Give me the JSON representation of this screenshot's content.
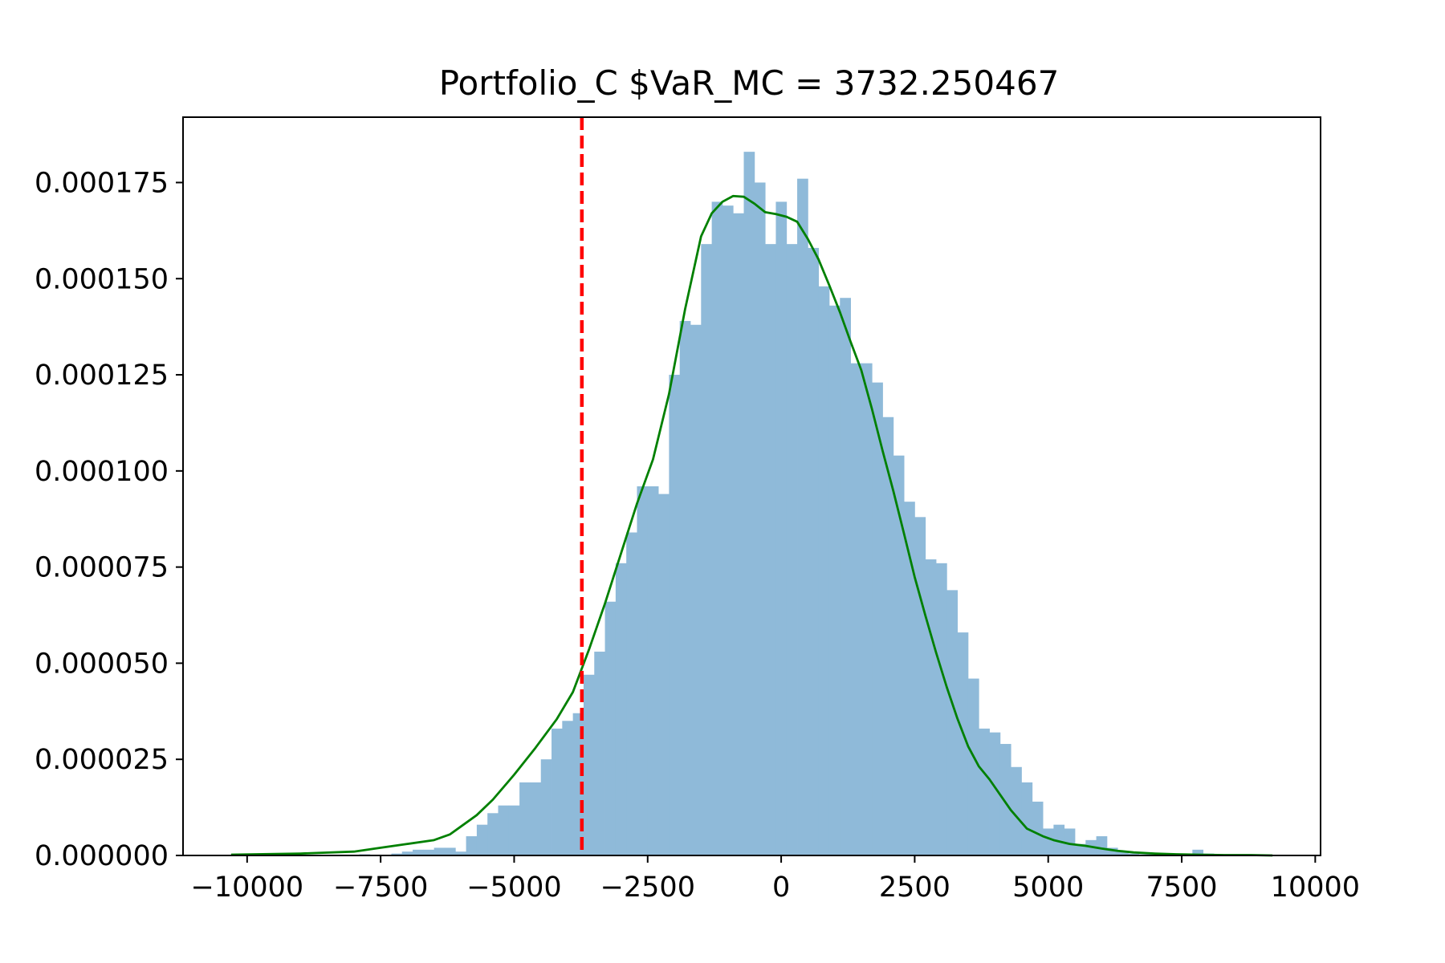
{
  "chart_data": {
    "type": "bar",
    "title": "Portfolio_C $VaR_MC = 3732.250467",
    "xlabel": "",
    "ylabel": "",
    "xlim": [
      -11200,
      10100
    ],
    "ylim": [
      0,
      0.000192
    ],
    "x_ticks": [
      -10000,
      -7500,
      -5000,
      -2500,
      0,
      2500,
      5000,
      7500,
      10000
    ],
    "x_tick_labels": [
      "−10000",
      "−7500",
      "−5000",
      "−2500",
      "0",
      "2500",
      "5000",
      "7500",
      "10000"
    ],
    "y_ticks": [
      0,
      2.5e-05,
      5e-05,
      7.5e-05,
      0.0001,
      0.000125,
      0.00015,
      0.000175
    ],
    "y_tick_labels": [
      "0.000000",
      "0.000025",
      "0.000050",
      "0.000075",
      "0.000100",
      "0.000125",
      "0.000150",
      "0.000175"
    ],
    "grid": false,
    "series": [
      {
        "kind": "histogram",
        "color": "#8fbad9",
        "bin_edges": [
          -10300,
          -10100,
          -9900,
          -9700,
          -9500,
          -9300,
          -9100,
          -8900,
          -8700,
          -8500,
          -8300,
          -8100,
          -7900,
          -7700,
          -7500,
          -7300,
          -7100,
          -6900,
          -6700,
          -6500,
          -6300,
          -6100,
          -5900,
          -5700,
          -5500,
          -5300,
          -5100,
          -4900,
          -4700,
          -4500,
          -4300,
          -4100,
          -3900,
          -3700,
          -3500,
          -3300,
          -3100,
          -2900,
          -2700,
          -2500,
          -2300,
          -2100,
          -1900,
          -1700,
          -1500,
          -1300,
          -1100,
          -900,
          -700,
          -500,
          -300,
          -100,
          100,
          300,
          500,
          700,
          900,
          1100,
          1300,
          1500,
          1700,
          1900,
          2100,
          2300,
          2500,
          2700,
          2900,
          3100,
          3300,
          3500,
          3700,
          3900,
          4100,
          4300,
          4500,
          4700,
          4900,
          5100,
          5300,
          5500,
          5700,
          5900,
          6100,
          6300,
          6500,
          6700,
          6900,
          7100,
          7300,
          7500,
          7700,
          7900,
          8100,
          8300,
          8500,
          8700,
          8900,
          9100
        ],
        "values": [
          3e-07,
          0,
          0,
          0,
          0,
          0,
          0,
          0,
          0,
          0,
          0,
          0,
          3e-07,
          0,
          0,
          5e-07,
          1e-06,
          1.5e-06,
          1.5e-06,
          2e-06,
          2e-06,
          1e-06,
          5e-06,
          8e-06,
          1.1e-05,
          1.3e-05,
          1.3e-05,
          1.9e-05,
          1.9e-05,
          2.5e-05,
          3.3e-05,
          3.5e-05,
          3.7e-05,
          4.7e-05,
          5.3e-05,
          6.6e-05,
          7.6e-05,
          8.4e-05,
          9.6e-05,
          9.6e-05,
          9.4e-05,
          0.000125,
          0.000139,
          0.000138,
          0.000159,
          0.00017,
          0.000169,
          0.000167,
          0.000183,
          0.000175,
          0.000159,
          0.00017,
          0.000159,
          0.000176,
          0.000158,
          0.000148,
          0.000143,
          0.000145,
          0.000128,
          0.000128,
          0.000123,
          0.000114,
          0.000104,
          9.2e-05,
          8.8e-05,
          7.7e-05,
          7.6e-05,
          6.9e-05,
          5.8e-05,
          4.6e-05,
          3.3e-05,
          3.2e-05,
          2.9e-05,
          2.3e-05,
          1.9e-05,
          1.4e-05,
          7e-06,
          8e-06,
          7e-06,
          3e-06,
          4e-06,
          5e-06,
          2e-06,
          1e-06,
          5e-07,
          3e-07,
          3e-07,
          3e-07,
          3e-07,
          3e-07,
          1.5e-06,
          5e-07,
          0,
          0,
          0,
          0,
          0
        ]
      },
      {
        "kind": "kde_line",
        "color": "#008000",
        "x": [
          -10300,
          -9000,
          -8000,
          -7500,
          -7000,
          -6500,
          -6200,
          -6000,
          -5700,
          -5400,
          -5000,
          -4600,
          -4200,
          -3900,
          -3600,
          -3300,
          -3000,
          -2700,
          -2400,
          -2100,
          -1800,
          -1500,
          -1300,
          -1100,
          -900,
          -700,
          -500,
          -300,
          -100,
          100,
          300,
          500,
          700,
          900,
          1100,
          1300,
          1500,
          1700,
          1900,
          2100,
          2300,
          2500,
          2700,
          2900,
          3100,
          3300,
          3500,
          3700,
          3900,
          4100,
          4300,
          4600,
          4900,
          5100,
          5400,
          5700,
          6000,
          6300,
          6600,
          7000,
          7400,
          7800,
          8300,
          8800,
          9200
        ],
        "y": [
          2e-07,
          5e-07,
          1e-06,
          2e-06,
          3e-06,
          4e-06,
          5.5e-06,
          7.5e-06,
          1.05e-05,
          1.45e-05,
          2.1e-05,
          2.8e-05,
          3.55e-05,
          4.25e-05,
          5.35e-05,
          6.55e-05,
          7.85e-05,
          9.15e-05,
          0.000103,
          0.00012,
          0.000142,
          0.000161,
          0.000167,
          0.00017,
          0.0001715,
          0.0001713,
          0.0001695,
          0.0001673,
          0.0001668,
          0.0001661,
          0.0001648,
          0.0001603,
          0.000155,
          0.0001483,
          0.0001413,
          0.0001336,
          0.0001262,
          0.0001161,
          0.0001052,
          9.48e-05,
          8.37e-05,
          7.24e-05,
          6.24e-05,
          5.28e-05,
          4.38e-05,
          3.56e-05,
          2.84e-05,
          2.32e-05,
          1.98e-05,
          1.58e-05,
          1.18e-05,
          7e-06,
          5e-06,
          4e-06,
          3e-06,
          2.5e-06,
          1.8e-06,
          1.2e-06,
          8e-07,
          5e-07,
          3e-07,
          2e-07,
          1e-07,
          1e-07,
          0
        ]
      },
      {
        "kind": "vline",
        "color": "#ff0000",
        "style": "dashed",
        "x": -3732.250467
      }
    ]
  }
}
